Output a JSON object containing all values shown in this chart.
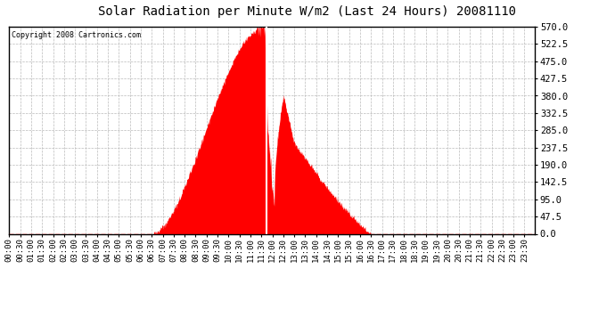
{
  "title": "Solar Radiation per Minute W/m2 (Last 24 Hours) 20081110",
  "copyright_text": "Copyright 2008 Cartronics.com",
  "fill_color": "#FF0000",
  "white_line_color": "#FFFFFF",
  "dashed_line_color": "#FF0000",
  "background_color": "#FFFFFF",
  "grid_color": "#BBBBBB",
  "ylim": [
    0.0,
    570.0
  ],
  "yticks": [
    0.0,
    47.5,
    95.0,
    142.5,
    190.0,
    237.5,
    285.0,
    332.5,
    380.0,
    427.5,
    475.0,
    522.5,
    570.0
  ],
  "n_points": 1440,
  "sunrise_minute": 390,
  "sunset_minute": 990,
  "peak_minute": 700,
  "peak_value": 570.0,
  "white_line_minute": 703,
  "second_peak_minute": 750,
  "second_peak_value": 380.0,
  "third_peak_minute": 780,
  "third_peak_value": 250.0,
  "tick_step": 30,
  "title_fontsize": 10,
  "copyright_fontsize": 6,
  "tick_fontsize": 6.5,
  "ytick_fontsize": 7.5
}
